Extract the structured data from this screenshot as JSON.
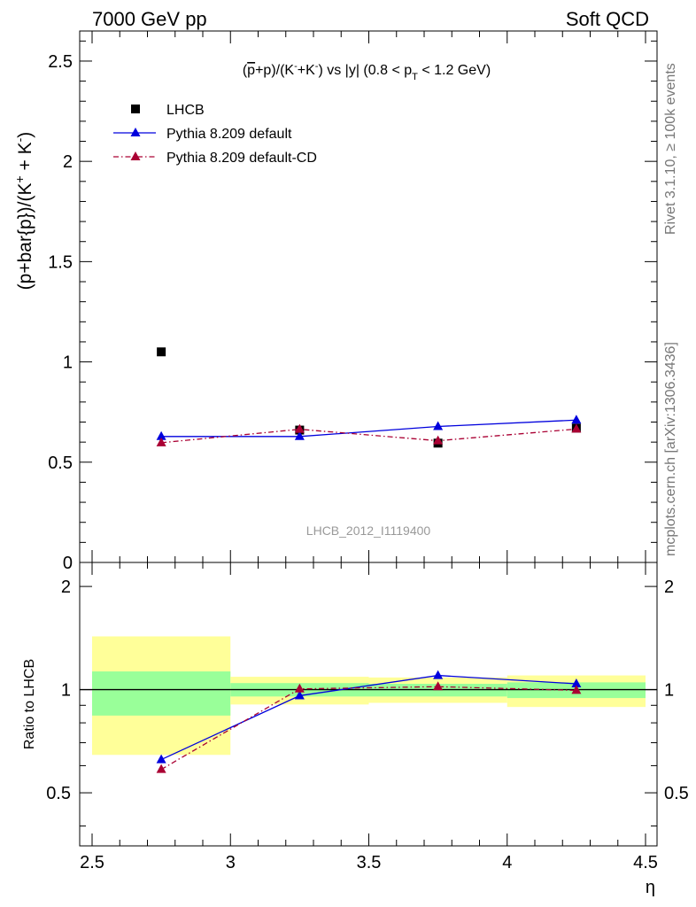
{
  "header": {
    "left": "7000 GeV pp",
    "right": "Soft QCD"
  },
  "side_labels": {
    "rivet": "Rivet 3.1.10, ≥ 100k events",
    "mcplots": "mcplots.cern.ch [arXiv:1306.3436]"
  },
  "watermark": "LHCB_2012_I1119400",
  "chart_data": [
    {
      "type": "scatter",
      "title": "(p̄+p)/(K⁻+K⁻) vs |y| (0.8 < p_T < 1.2 GeV)",
      "title_parts": {
        "pre": "(",
        "pbar": "p",
        "mid": "+p)/(K",
        "k1sup": "-",
        "mid2": "+K",
        "k2sup": "-",
        "post": ") vs |y| (0.8 < p",
        "sub": "T",
        "end": " < 1.2 GeV)"
      },
      "ylabel": "(p+bar{p})/(K⁺ + K⁻)",
      "ylabel_parts": {
        "main": "(p+bar{p})/(K",
        "sup1": "+",
        "mid": " + K",
        "sup2": "-",
        "end": ")"
      },
      "xlim": [
        2.5,
        4.5
      ],
      "ylim": [
        0,
        2.65
      ],
      "yticks": [
        "0",
        "0.5",
        "1",
        "1.5",
        "2",
        "2.5"
      ],
      "legend_position": "top-left",
      "series": [
        {
          "name": "LHCB",
          "marker": "square",
          "color": "#000000",
          "x": [
            2.75,
            3.25,
            3.75,
            4.25
          ],
          "y": [
            1.05,
            0.66,
            0.595,
            0.67
          ],
          "yerr": [
            0.01,
            0.01,
            0.01,
            0.01
          ]
        },
        {
          "name": "Pythia 8.209 default",
          "marker": "triangle",
          "line": "solid",
          "color": "#0000dd",
          "x": [
            2.75,
            3.25,
            3.75,
            4.25
          ],
          "y": [
            0.628,
            0.628,
            0.678,
            0.71
          ],
          "yerr": [
            0.008,
            0.008,
            0.015,
            0.02
          ]
        },
        {
          "name": "Pythia 8.209 default-CD",
          "marker": "triangle",
          "line": "dashdot",
          "color": "#aa0033",
          "x": [
            2.75,
            3.25,
            3.75,
            4.25
          ],
          "y": [
            0.597,
            0.664,
            0.607,
            0.665
          ],
          "yerr": [
            0.008,
            0.01,
            0.012,
            0.015
          ]
        }
      ]
    },
    {
      "type": "scatter",
      "ylabel": "Ratio to LHCB",
      "xlabel": "η",
      "xlim": [
        2.5,
        4.5
      ],
      "ylim": [
        0.35,
        2.35
      ],
      "xticks": [
        "2.5",
        "3",
        "3.5",
        "4",
        "4.5"
      ],
      "yticks": [
        "0.5",
        "1",
        "2"
      ],
      "reference_line": 1,
      "bands": [
        {
          "x": [
            2.5,
            3.0
          ],
          "yellow": [
            0.645,
            1.43
          ],
          "green": [
            0.84,
            1.13
          ]
        },
        {
          "x": [
            3.0,
            3.5
          ],
          "yellow": [
            0.905,
            1.09
          ],
          "green": [
            0.955,
            1.045
          ]
        },
        {
          "x": [
            3.5,
            4.0
          ],
          "yellow": [
            0.915,
            1.085
          ],
          "green": [
            0.955,
            1.04
          ]
        },
        {
          "x": [
            4.0,
            4.5
          ],
          "yellow": [
            0.89,
            1.1
          ],
          "green": [
            0.945,
            1.05
          ]
        }
      ],
      "series": [
        {
          "name": "Pythia 8.209 default",
          "marker": "triangle",
          "line": "solid",
          "color": "#0000dd",
          "x": [
            2.75,
            3.25,
            3.75,
            4.25
          ],
          "y": [
            0.625,
            0.96,
            1.1,
            1.04
          ],
          "yerr": [
            0.012,
            0.01,
            0.015,
            0.02
          ]
        },
        {
          "name": "Pythia 8.209 default-CD",
          "marker": "triangle",
          "line": "dashdot",
          "color": "#aa0033",
          "x": [
            2.75,
            3.25,
            3.75,
            4.25
          ],
          "y": [
            0.585,
            1.005,
            1.02,
            0.995
          ],
          "yerr": [
            0.012,
            0.012,
            0.015,
            0.015
          ]
        }
      ]
    }
  ]
}
